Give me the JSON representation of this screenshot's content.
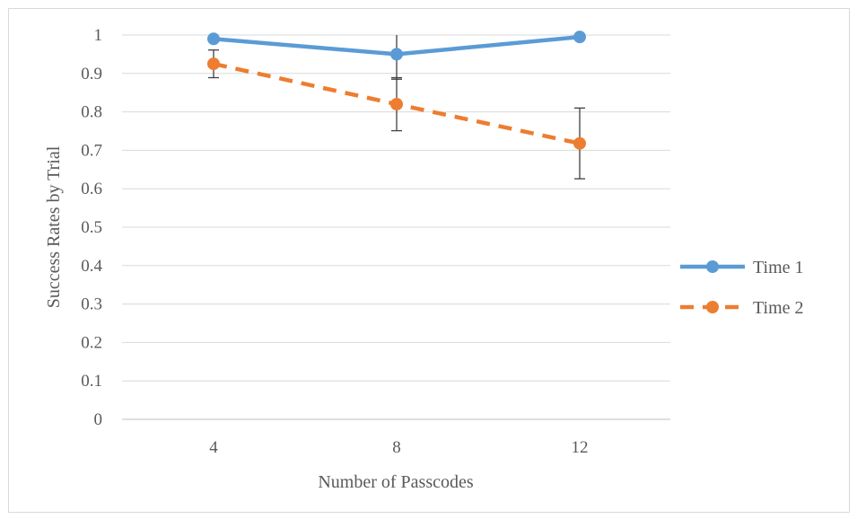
{
  "chart_data": {
    "type": "line",
    "categories": [
      "4",
      "8",
      "12"
    ],
    "ylim": [
      0,
      1
    ],
    "y_ticks": [
      "0",
      "0.1",
      "0.2",
      "0.3",
      "0.4",
      "0.5",
      "0.6",
      "0.7",
      "0.8",
      "0.9",
      "1"
    ],
    "ylabel": "Success Rates by Trial",
    "xlabel": "Number of Passcodes",
    "grid": "horizontal",
    "legend_position": "right",
    "series": [
      {
        "name": "Time 1",
        "values": [
          0.99,
          0.95,
          0.995
        ],
        "error": [
          null,
          0.065,
          null
        ],
        "color": "#5b9bd5",
        "dash": "solid"
      },
      {
        "name": "Time 2",
        "values": [
          0.925,
          0.82,
          0.718
        ],
        "error": [
          0.036,
          0.069,
          0.092
        ],
        "color": "#ed7d31",
        "dash": "dashed"
      }
    ]
  }
}
